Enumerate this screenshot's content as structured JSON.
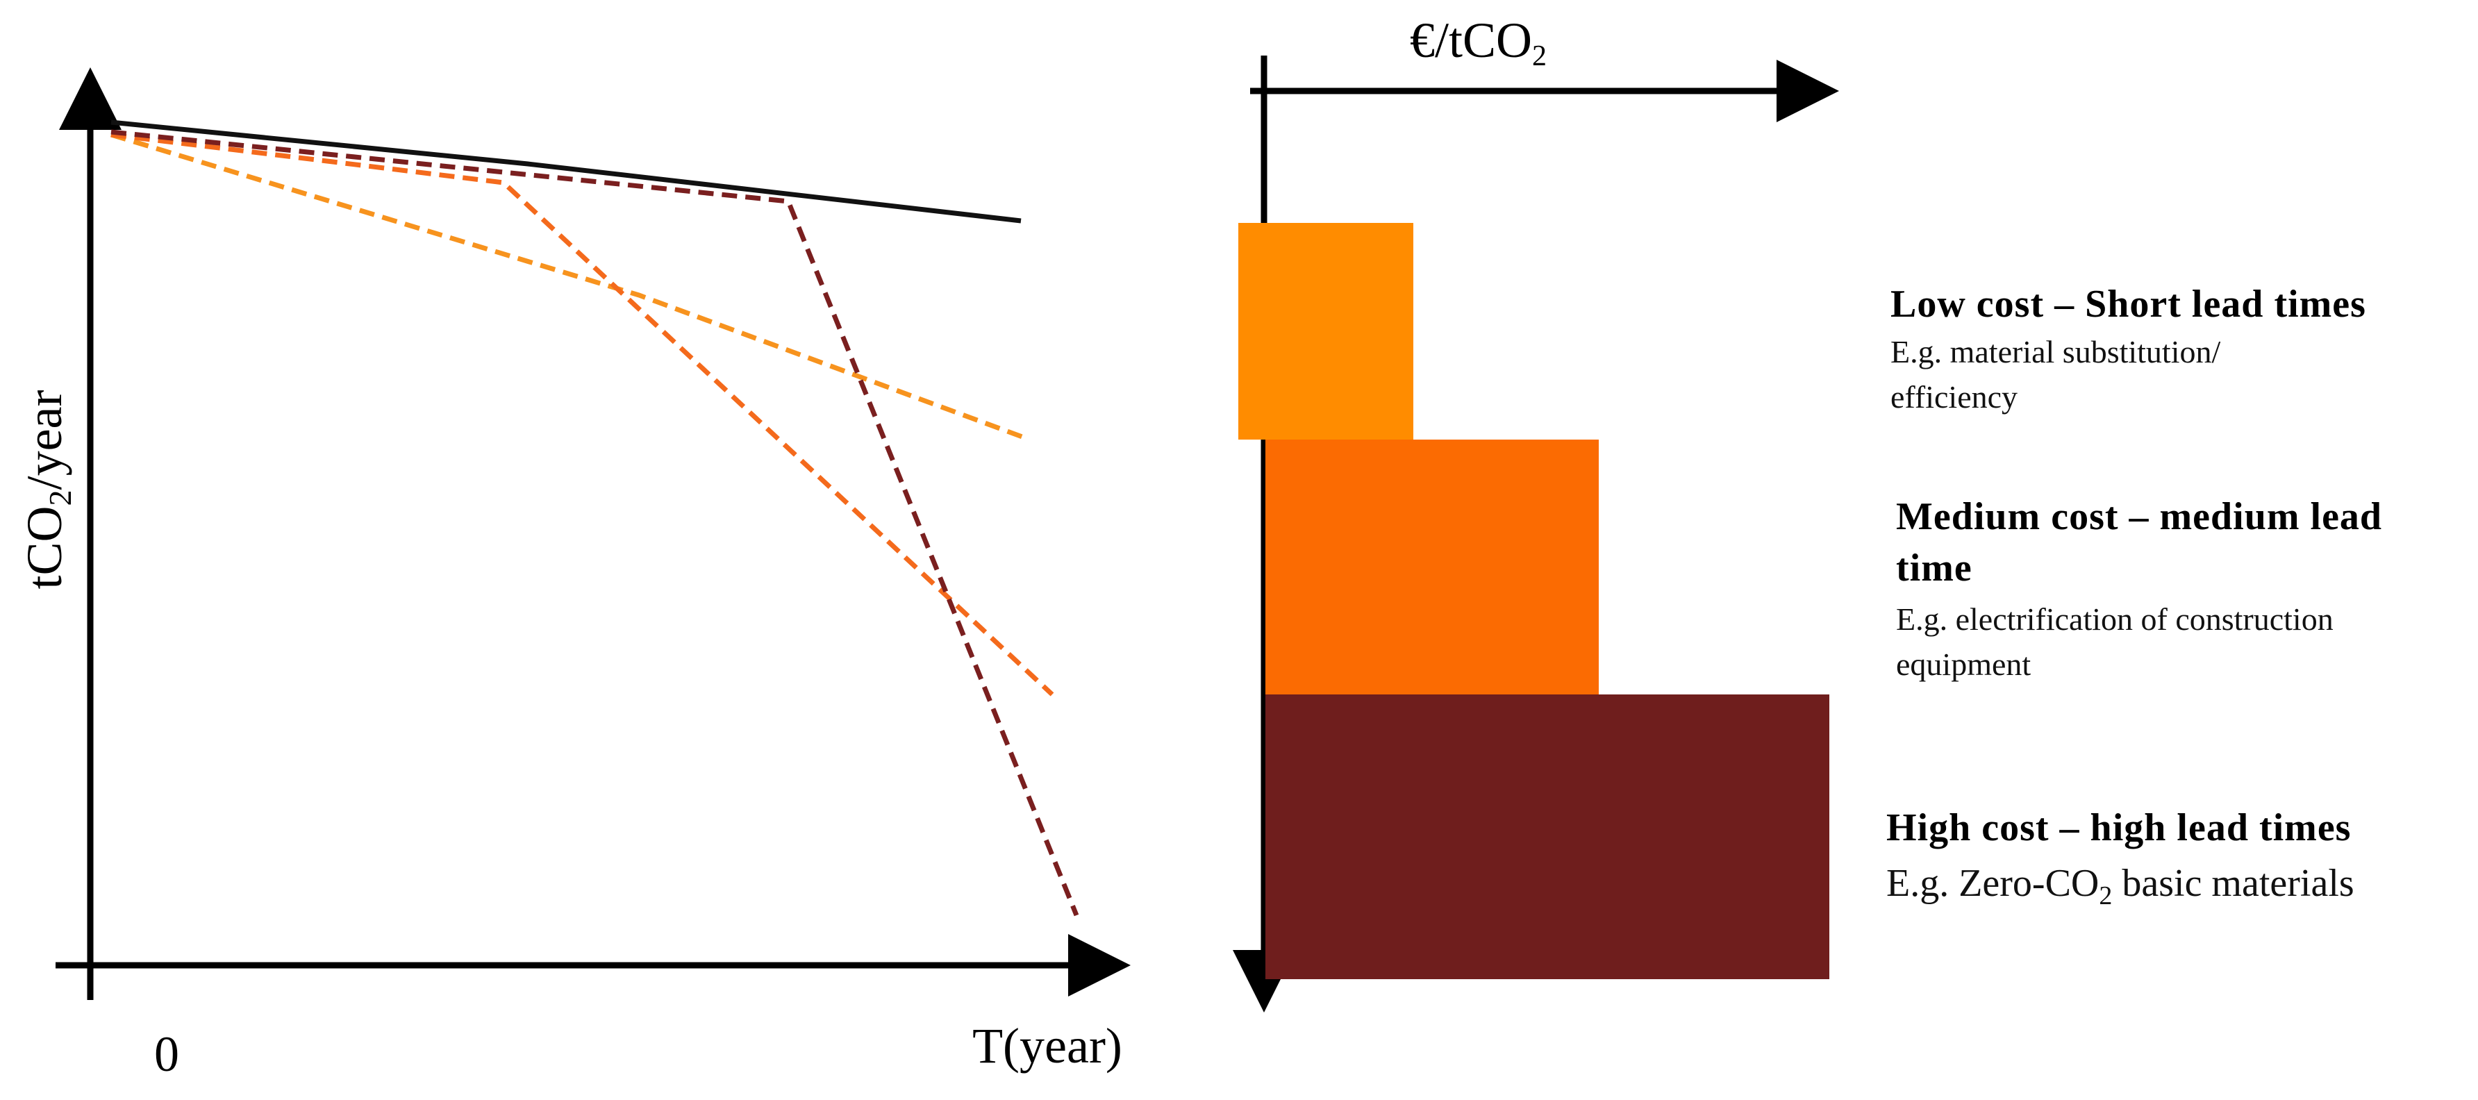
{
  "left_chart": {
    "ylabel_pre": "tCO",
    "ylabel_sub": "2",
    "ylabel_post": "/year",
    "xlabel": "T(year)",
    "x_origin_label": "0",
    "colors": {
      "axis": "#000000",
      "baseline": "#111111",
      "orange": "#F7931E",
      "orange_dark": "#F46A1C",
      "maroon": "#7A1F1F"
    }
  },
  "cost_chart": {
    "axis_title_pre": "€/tCO",
    "axis_title_sub": "2",
    "tiers": [
      {
        "name": "low",
        "color": "#FF8C00",
        "heading": "Low cost – Short lead times",
        "desc_lines": [
          "E.g. material substitution/",
          "efficiency"
        ]
      },
      {
        "name": "medium",
        "color": "#FB6B02",
        "heading_lines": [
          "Medium cost – medium lead",
          "time"
        ],
        "desc_lines": [
          "E.g. electrification  of construction",
          "equipment"
        ]
      },
      {
        "name": "high",
        "color": "#6F1E1D",
        "heading": "High cost – high lead times",
        "desc_pre": "E.g. Zero-CO",
        "desc_sub": "2",
        "desc_post": " basic materials"
      }
    ]
  }
}
